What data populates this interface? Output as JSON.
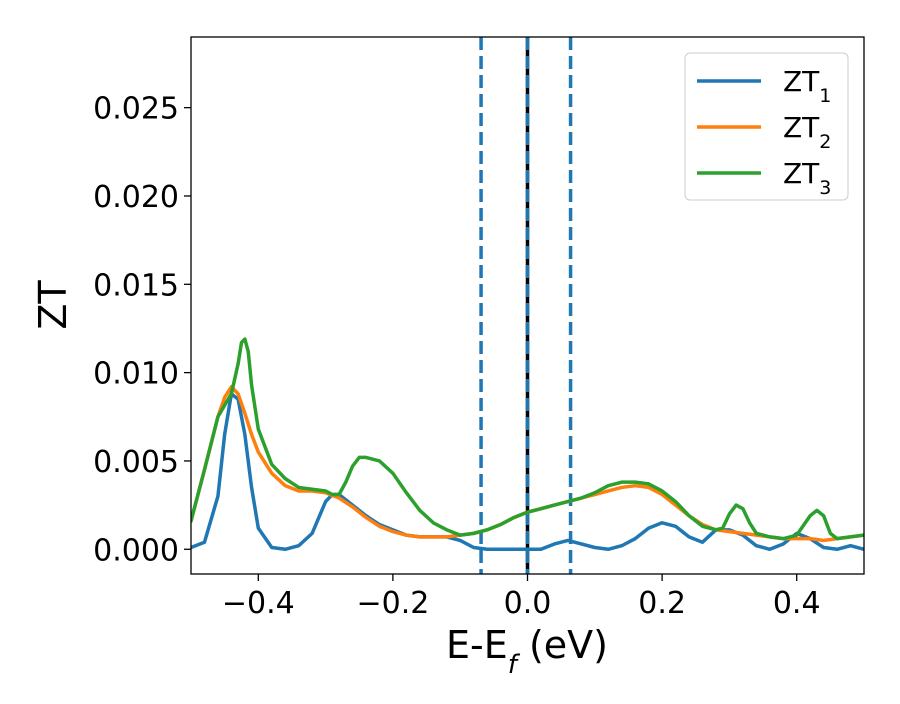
{
  "chart_data": {
    "type": "line",
    "title": "",
    "xlabel_main": "E-E",
    "xlabel_sub": "f",
    "xlabel_unit": " (eV)",
    "ylabel": "ZT",
    "xlim": [
      -0.5,
      0.5
    ],
    "ylim": [
      -0.0014,
      0.029
    ],
    "x_ticks": [
      -0.4,
      -0.2,
      0.0,
      0.2,
      0.4
    ],
    "x_tick_labels": [
      "−0.4",
      "−0.2",
      "0.0",
      "0.2",
      "0.4"
    ],
    "y_ticks": [
      0.0,
      0.005,
      0.01,
      0.015,
      0.02,
      0.025
    ],
    "y_tick_labels": [
      "0.000",
      "0.005",
      "0.010",
      "0.015",
      "0.020",
      "0.025"
    ],
    "grid": false,
    "legend_position": "top-right",
    "vlines": [
      {
        "x": -0.069,
        "style": "dashed",
        "color": "#1f77b4"
      },
      {
        "x": 0.0,
        "style": "solid",
        "color": "#000000"
      },
      {
        "x": 0.0,
        "style": "dashed",
        "color": "#1f77b4"
      },
      {
        "x": 0.064,
        "style": "dashed",
        "color": "#1f77b4"
      }
    ],
    "series": [
      {
        "name_main": "ZT",
        "name_sub": "1",
        "color": "#1f77b4",
        "points": [
          [
            -0.5,
            0.0001
          ],
          [
            -0.48,
            0.0004
          ],
          [
            -0.46,
            0.003
          ],
          [
            -0.45,
            0.0065
          ],
          [
            -0.44,
            0.0088
          ],
          [
            -0.43,
            0.0085
          ],
          [
            -0.42,
            0.0065
          ],
          [
            -0.41,
            0.0035
          ],
          [
            -0.4,
            0.0012
          ],
          [
            -0.38,
            0.0001
          ],
          [
            -0.36,
            0.0
          ],
          [
            -0.34,
            0.0002
          ],
          [
            -0.32,
            0.0009
          ],
          [
            -0.31,
            0.0018
          ],
          [
            -0.3,
            0.0027
          ],
          [
            -0.29,
            0.0031
          ],
          [
            -0.28,
            0.0031
          ],
          [
            -0.26,
            0.0025
          ],
          [
            -0.24,
            0.0019
          ],
          [
            -0.22,
            0.0014
          ],
          [
            -0.2,
            0.0011
          ],
          [
            -0.18,
            0.0008
          ],
          [
            -0.16,
            0.0007
          ],
          [
            -0.14,
            0.0007
          ],
          [
            -0.12,
            0.0007
          ],
          [
            -0.1,
            0.0005
          ],
          [
            -0.08,
            0.0001
          ],
          [
            -0.06,
            0.0
          ],
          [
            -0.04,
            0.0
          ],
          [
            -0.02,
            0.0
          ],
          [
            0.0,
            0.0
          ],
          [
            0.02,
            0.0
          ],
          [
            0.04,
            0.0003
          ],
          [
            0.06,
            0.0005
          ],
          [
            0.08,
            0.0003
          ],
          [
            0.1,
            0.0001
          ],
          [
            0.12,
            0.0
          ],
          [
            0.14,
            0.0002
          ],
          [
            0.16,
            0.0006
          ],
          [
            0.18,
            0.0012
          ],
          [
            0.2,
            0.0015
          ],
          [
            0.22,
            0.0013
          ],
          [
            0.24,
            0.0007
          ],
          [
            0.26,
            0.0004
          ],
          [
            0.28,
            0.0011
          ],
          [
            0.3,
            0.0011
          ],
          [
            0.32,
            0.0008
          ],
          [
            0.34,
            0.0002
          ],
          [
            0.36,
            0.0
          ],
          [
            0.38,
            0.0003
          ],
          [
            0.4,
            0.0009
          ],
          [
            0.42,
            0.0006
          ],
          [
            0.44,
            0.0001
          ],
          [
            0.46,
            0.0
          ],
          [
            0.48,
            0.0002
          ],
          [
            0.5,
            0.0
          ]
        ]
      },
      {
        "name_main": "ZT",
        "name_sub": "2",
        "color": "#ff7f0e",
        "points": [
          [
            -0.5,
            0.0016
          ],
          [
            -0.48,
            0.0045
          ],
          [
            -0.46,
            0.0075
          ],
          [
            -0.45,
            0.0086
          ],
          [
            -0.44,
            0.0092
          ],
          [
            -0.43,
            0.0088
          ],
          [
            -0.42,
            0.0077
          ],
          [
            -0.41,
            0.0065
          ],
          [
            -0.4,
            0.0055
          ],
          [
            -0.38,
            0.0043
          ],
          [
            -0.36,
            0.0036
          ],
          [
            -0.34,
            0.0033
          ],
          [
            -0.32,
            0.0033
          ],
          [
            -0.3,
            0.0032
          ],
          [
            -0.28,
            0.0029
          ],
          [
            -0.26,
            0.0024
          ],
          [
            -0.24,
            0.0018
          ],
          [
            -0.22,
            0.0013
          ],
          [
            -0.2,
            0.001
          ],
          [
            -0.18,
            0.0008
          ],
          [
            -0.16,
            0.0007
          ],
          [
            -0.14,
            0.0007
          ],
          [
            -0.12,
            0.0007
          ],
          [
            -0.1,
            0.0008
          ],
          [
            -0.08,
            0.0009
          ],
          [
            -0.06,
            0.0011
          ],
          [
            -0.04,
            0.0014
          ],
          [
            -0.02,
            0.0018
          ],
          [
            0.0,
            0.0021
          ],
          [
            0.02,
            0.0023
          ],
          [
            0.04,
            0.0025
          ],
          [
            0.06,
            0.0027
          ],
          [
            0.08,
            0.0029
          ],
          [
            0.1,
            0.0031
          ],
          [
            0.12,
            0.0033
          ],
          [
            0.14,
            0.0035
          ],
          [
            0.16,
            0.0036
          ],
          [
            0.18,
            0.0035
          ],
          [
            0.2,
            0.0031
          ],
          [
            0.22,
            0.0025
          ],
          [
            0.24,
            0.0019
          ],
          [
            0.26,
            0.0014
          ],
          [
            0.28,
            0.0011
          ],
          [
            0.3,
            0.001
          ],
          [
            0.32,
            0.0009
          ],
          [
            0.34,
            0.0008
          ],
          [
            0.36,
            0.0007
          ],
          [
            0.38,
            0.0006
          ],
          [
            0.4,
            0.0006
          ],
          [
            0.42,
            0.0006
          ],
          [
            0.44,
            0.0005
          ],
          [
            0.46,
            0.0006
          ],
          [
            0.48,
            0.0007
          ],
          [
            0.5,
            0.0008
          ]
        ]
      },
      {
        "name_main": "ZT",
        "name_sub": "3",
        "color": "#2ca02c",
        "points": [
          [
            -0.5,
            0.0016
          ],
          [
            -0.48,
            0.0045
          ],
          [
            -0.46,
            0.0075
          ],
          [
            -0.44,
            0.0088
          ],
          [
            -0.43,
            0.0105
          ],
          [
            -0.425,
            0.0117
          ],
          [
            -0.42,
            0.0119
          ],
          [
            -0.415,
            0.0112
          ],
          [
            -0.41,
            0.0093
          ],
          [
            -0.4,
            0.0068
          ],
          [
            -0.38,
            0.0048
          ],
          [
            -0.36,
            0.004
          ],
          [
            -0.34,
            0.0035
          ],
          [
            -0.32,
            0.0034
          ],
          [
            -0.3,
            0.0033
          ],
          [
            -0.29,
            0.0031
          ],
          [
            -0.28,
            0.0031
          ],
          [
            -0.27,
            0.0038
          ],
          [
            -0.26,
            0.0047
          ],
          [
            -0.25,
            0.0052
          ],
          [
            -0.24,
            0.0052
          ],
          [
            -0.22,
            0.005
          ],
          [
            -0.2,
            0.0043
          ],
          [
            -0.18,
            0.0032
          ],
          [
            -0.16,
            0.0022
          ],
          [
            -0.14,
            0.0015
          ],
          [
            -0.12,
            0.0011
          ],
          [
            -0.1,
            0.0008
          ],
          [
            -0.08,
            0.0009
          ],
          [
            -0.06,
            0.0011
          ],
          [
            -0.04,
            0.0014
          ],
          [
            -0.02,
            0.0018
          ],
          [
            0.0,
            0.0021
          ],
          [
            0.02,
            0.0023
          ],
          [
            0.04,
            0.0025
          ],
          [
            0.06,
            0.0027
          ],
          [
            0.08,
            0.0029
          ],
          [
            0.1,
            0.0032
          ],
          [
            0.12,
            0.0036
          ],
          [
            0.14,
            0.0038
          ],
          [
            0.16,
            0.0038
          ],
          [
            0.18,
            0.0037
          ],
          [
            0.2,
            0.0033
          ],
          [
            0.22,
            0.0027
          ],
          [
            0.24,
            0.0019
          ],
          [
            0.26,
            0.0013
          ],
          [
            0.28,
            0.0011
          ],
          [
            0.29,
            0.0012
          ],
          [
            0.3,
            0.002
          ],
          [
            0.31,
            0.0025
          ],
          [
            0.32,
            0.0023
          ],
          [
            0.33,
            0.0015
          ],
          [
            0.34,
            0.0009
          ],
          [
            0.36,
            0.0007
          ],
          [
            0.38,
            0.0006
          ],
          [
            0.4,
            0.0008
          ],
          [
            0.42,
            0.0019
          ],
          [
            0.43,
            0.0022
          ],
          [
            0.44,
            0.0019
          ],
          [
            0.45,
            0.0009
          ],
          [
            0.46,
            0.0006
          ],
          [
            0.48,
            0.0007
          ],
          [
            0.5,
            0.0008
          ]
        ]
      }
    ]
  }
}
